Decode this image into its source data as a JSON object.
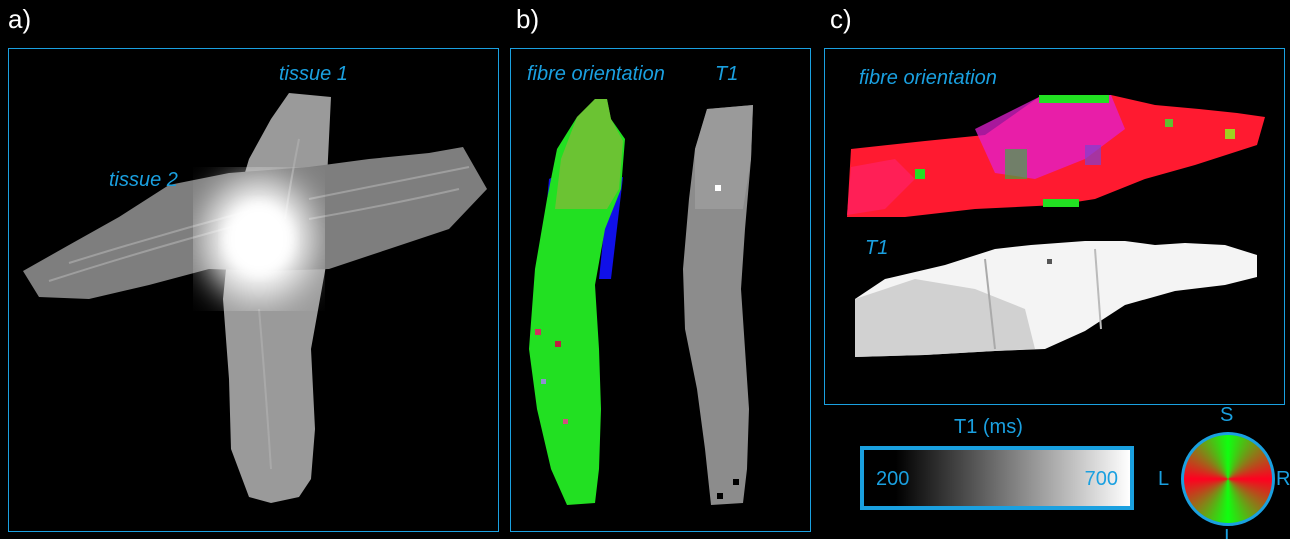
{
  "panels": {
    "a": {
      "label": "a)",
      "tissue1": "tissue 1",
      "tissue2": "tissue 2"
    },
    "b": {
      "label": "b)",
      "fibre": "fibre orientation",
      "t1": "T1"
    },
    "c": {
      "label": "c)",
      "fibre": "fibre orientation",
      "t1": "T1"
    }
  },
  "colorbar": {
    "title": "T1 (ms)",
    "min": "200",
    "max": "700"
  },
  "orientation_key": {
    "top": "S",
    "bottom": "I",
    "left": "L",
    "right": "R"
  },
  "colors": {
    "accent": "#1aa0e0",
    "green": "#22e022",
    "red": "#ff1040",
    "magenta": "#e020d0"
  }
}
